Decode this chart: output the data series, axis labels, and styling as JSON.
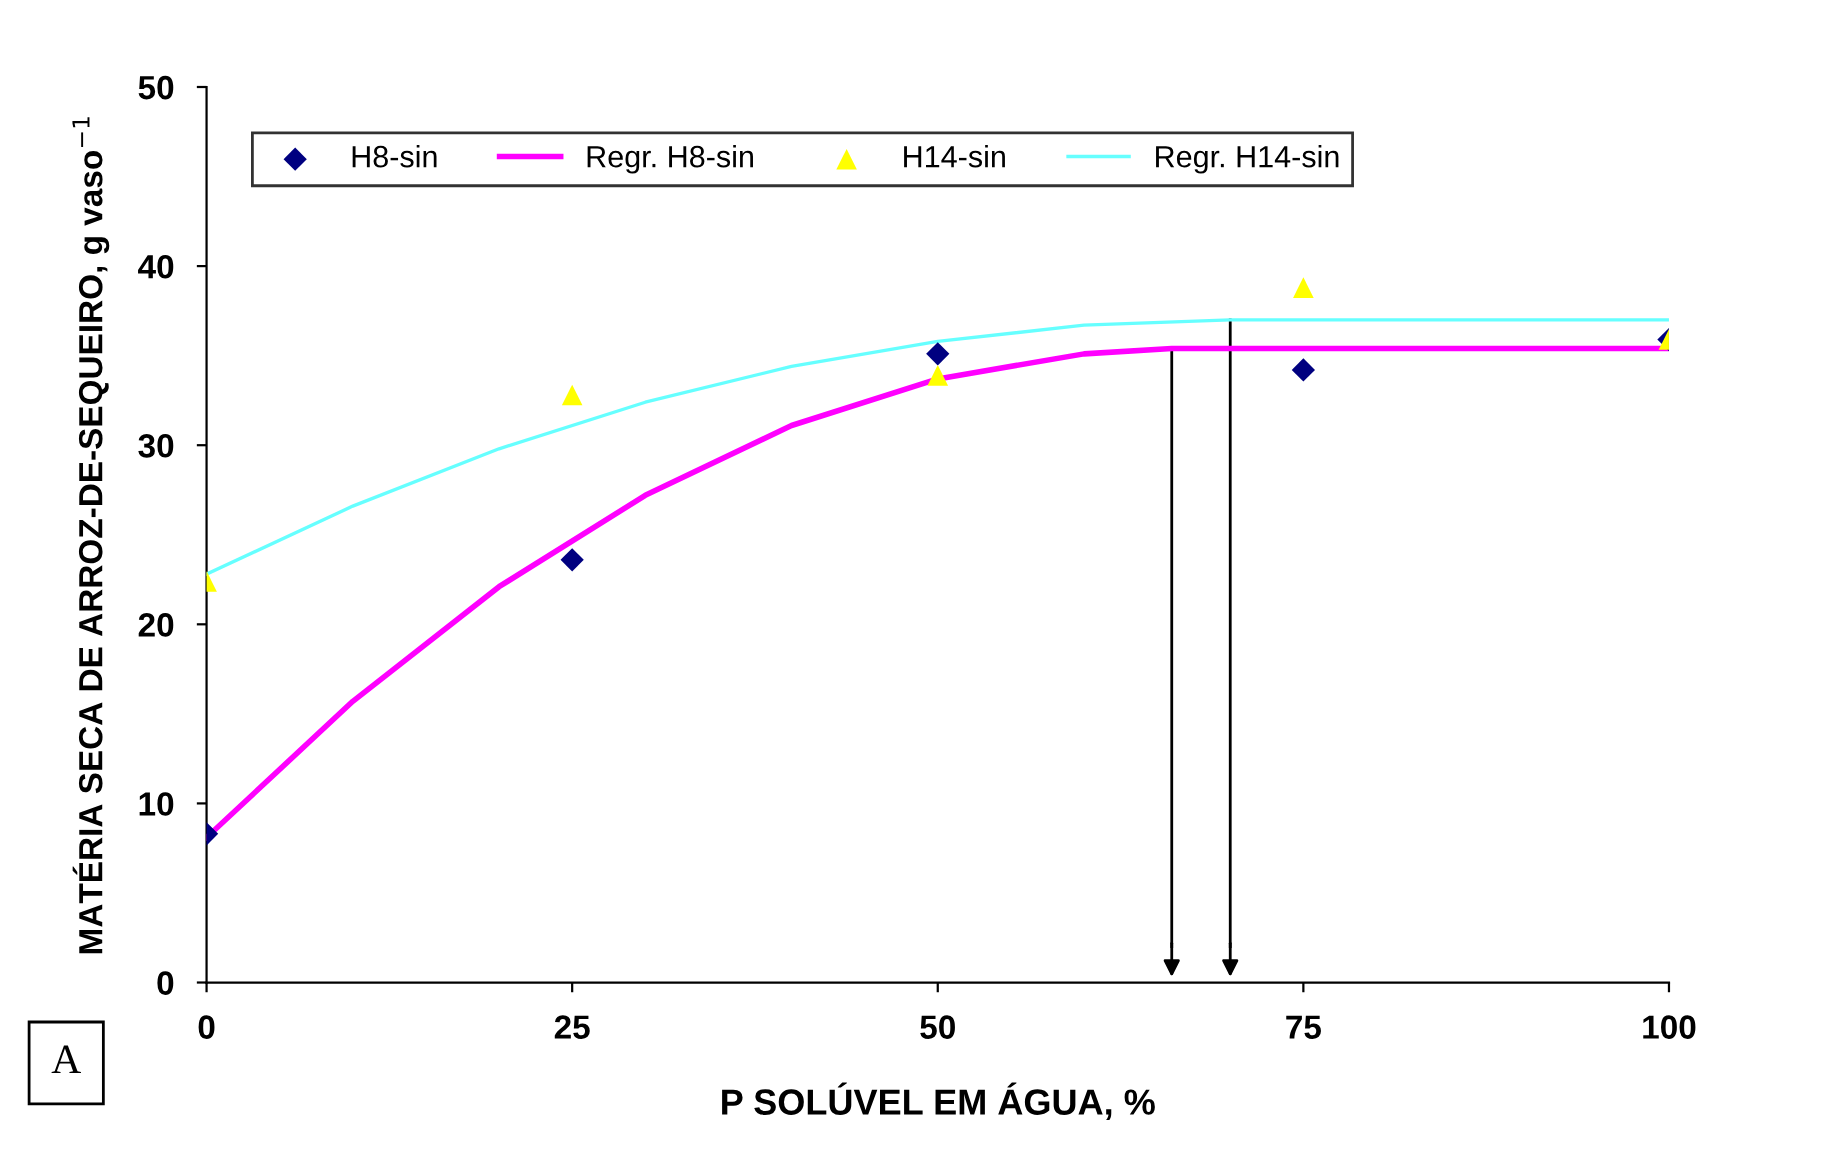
{
  "chart_data": {
    "type": "scatter",
    "xlabel": "P SOLÚVEL EM ÁGUA, %",
    "ylabel": "MATÉRIA SECA DE ARROZ-DE-SEQUEIRO, g vaso$^{−1}$",
    "xlim": [
      0,
      100
    ],
    "xticks": [
      0,
      25,
      50,
      75,
      100
    ],
    "ylim": [
      0,
      50
    ],
    "yticks": [
      0,
      10,
      20,
      30,
      40,
      50
    ],
    "grid": false,
    "legend": "top left",
    "series": [
      {
        "name": "H8-sin",
        "marker": "diamond",
        "color": "#000080",
        "x": [
          0,
          25,
          50,
          75,
          100
        ],
        "values": [
          8.3,
          23.6,
          35.1,
          34.2,
          35.9
        ]
      },
      {
        "name": "Regr. H8-sin",
        "type": "line",
        "marker": "none",
        "line_style": "solid",
        "color": "#ff00ff",
        "x": [
          0,
          10,
          20,
          30,
          40,
          50,
          60,
          66,
          70,
          80,
          90,
          100
        ],
        "values": [
          8.1,
          15.7,
          22.1,
          27.2,
          31.1,
          33.7,
          35.1,
          35.4,
          35.4,
          35.4,
          35.4,
          35.4
        ]
      },
      {
        "name": "H14-sin",
        "marker": "triangle",
        "color": "#ffff00",
        "x": [
          0,
          25,
          50,
          75,
          100
        ],
        "values": [
          22.4,
          32.8,
          33.9,
          38.8,
          35.9
        ]
      },
      {
        "name": "Regr. H14-sin",
        "type": "line",
        "marker": "none",
        "line_style": "solid",
        "color": "#66ffff",
        "x": [
          0,
          10,
          20,
          30,
          40,
          50,
          60,
          70,
          80,
          90,
          100
        ],
        "values": [
          22.8,
          26.6,
          29.8,
          32.4,
          34.4,
          35.8,
          36.7,
          37.0,
          37.0,
          37.0,
          37.0
        ]
      }
    ],
    "ref_lines": [
      {
        "axis": "x",
        "value": 66,
        "color": "#000000"
      },
      {
        "axis": "x",
        "value": 70,
        "color": "#000000"
      }
    ],
    "annotations": [
      "A"
    ]
  }
}
